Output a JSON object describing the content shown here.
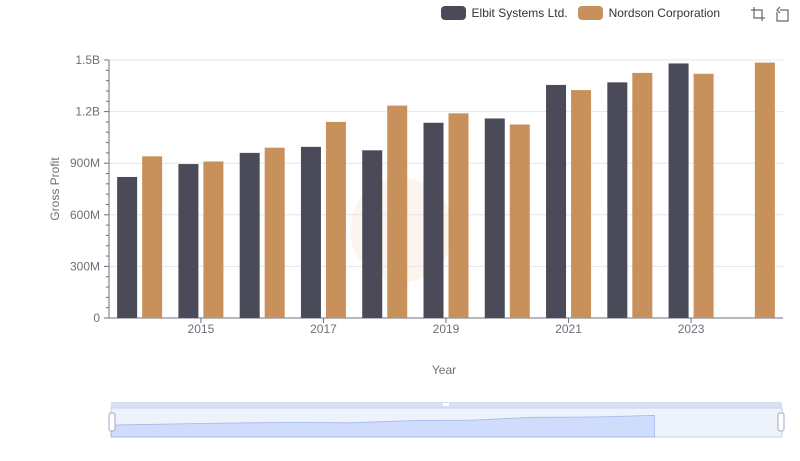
{
  "legend": {
    "items": [
      {
        "name": "Elbit Systems Ltd.",
        "color": "#4a4a58"
      },
      {
        "name": "Nordson Corporation",
        "color": "#c8915c"
      }
    ]
  },
  "toolbox": {
    "icons": [
      "zoom-icon",
      "restore-icon"
    ]
  },
  "chart_data": {
    "type": "bar",
    "x": [
      2014,
      2015,
      2016,
      2017,
      2018,
      2019,
      2020,
      2021,
      2022,
      2023,
      2024
    ],
    "series": [
      {
        "name": "Elbit Systems Ltd.",
        "color": "#4a4a58",
        "values": [
          820000000,
          895000000,
          960000000,
          995000000,
          975000000,
          1135000000,
          1160000000,
          1355000000,
          1370000000,
          1480000000,
          null
        ]
      },
      {
        "name": "Nordson Corporation",
        "color": "#c8915c",
        "values": [
          940000000,
          910000000,
          990000000,
          1140000000,
          1235000000,
          1190000000,
          1125000000,
          1325000000,
          1425000000,
          1420000000,
          1485000000
        ]
      }
    ],
    "xtick_labels": [
      "2015",
      "2017",
      "2019",
      "2021",
      "2023"
    ],
    "xtick_values": [
      2015,
      2017,
      2019,
      2021,
      2023
    ],
    "ytick_values": [
      0,
      300000000,
      600000000,
      900000000,
      1200000000,
      1500000000
    ],
    "ytick_labels": [
      "0",
      "300M",
      "600M",
      "900M",
      "1.2B",
      "1.5B"
    ],
    "ylim": [
      0,
      1500000000
    ],
    "xlabel": "Year",
    "ylabel": "Gross Profit",
    "title": ""
  }
}
